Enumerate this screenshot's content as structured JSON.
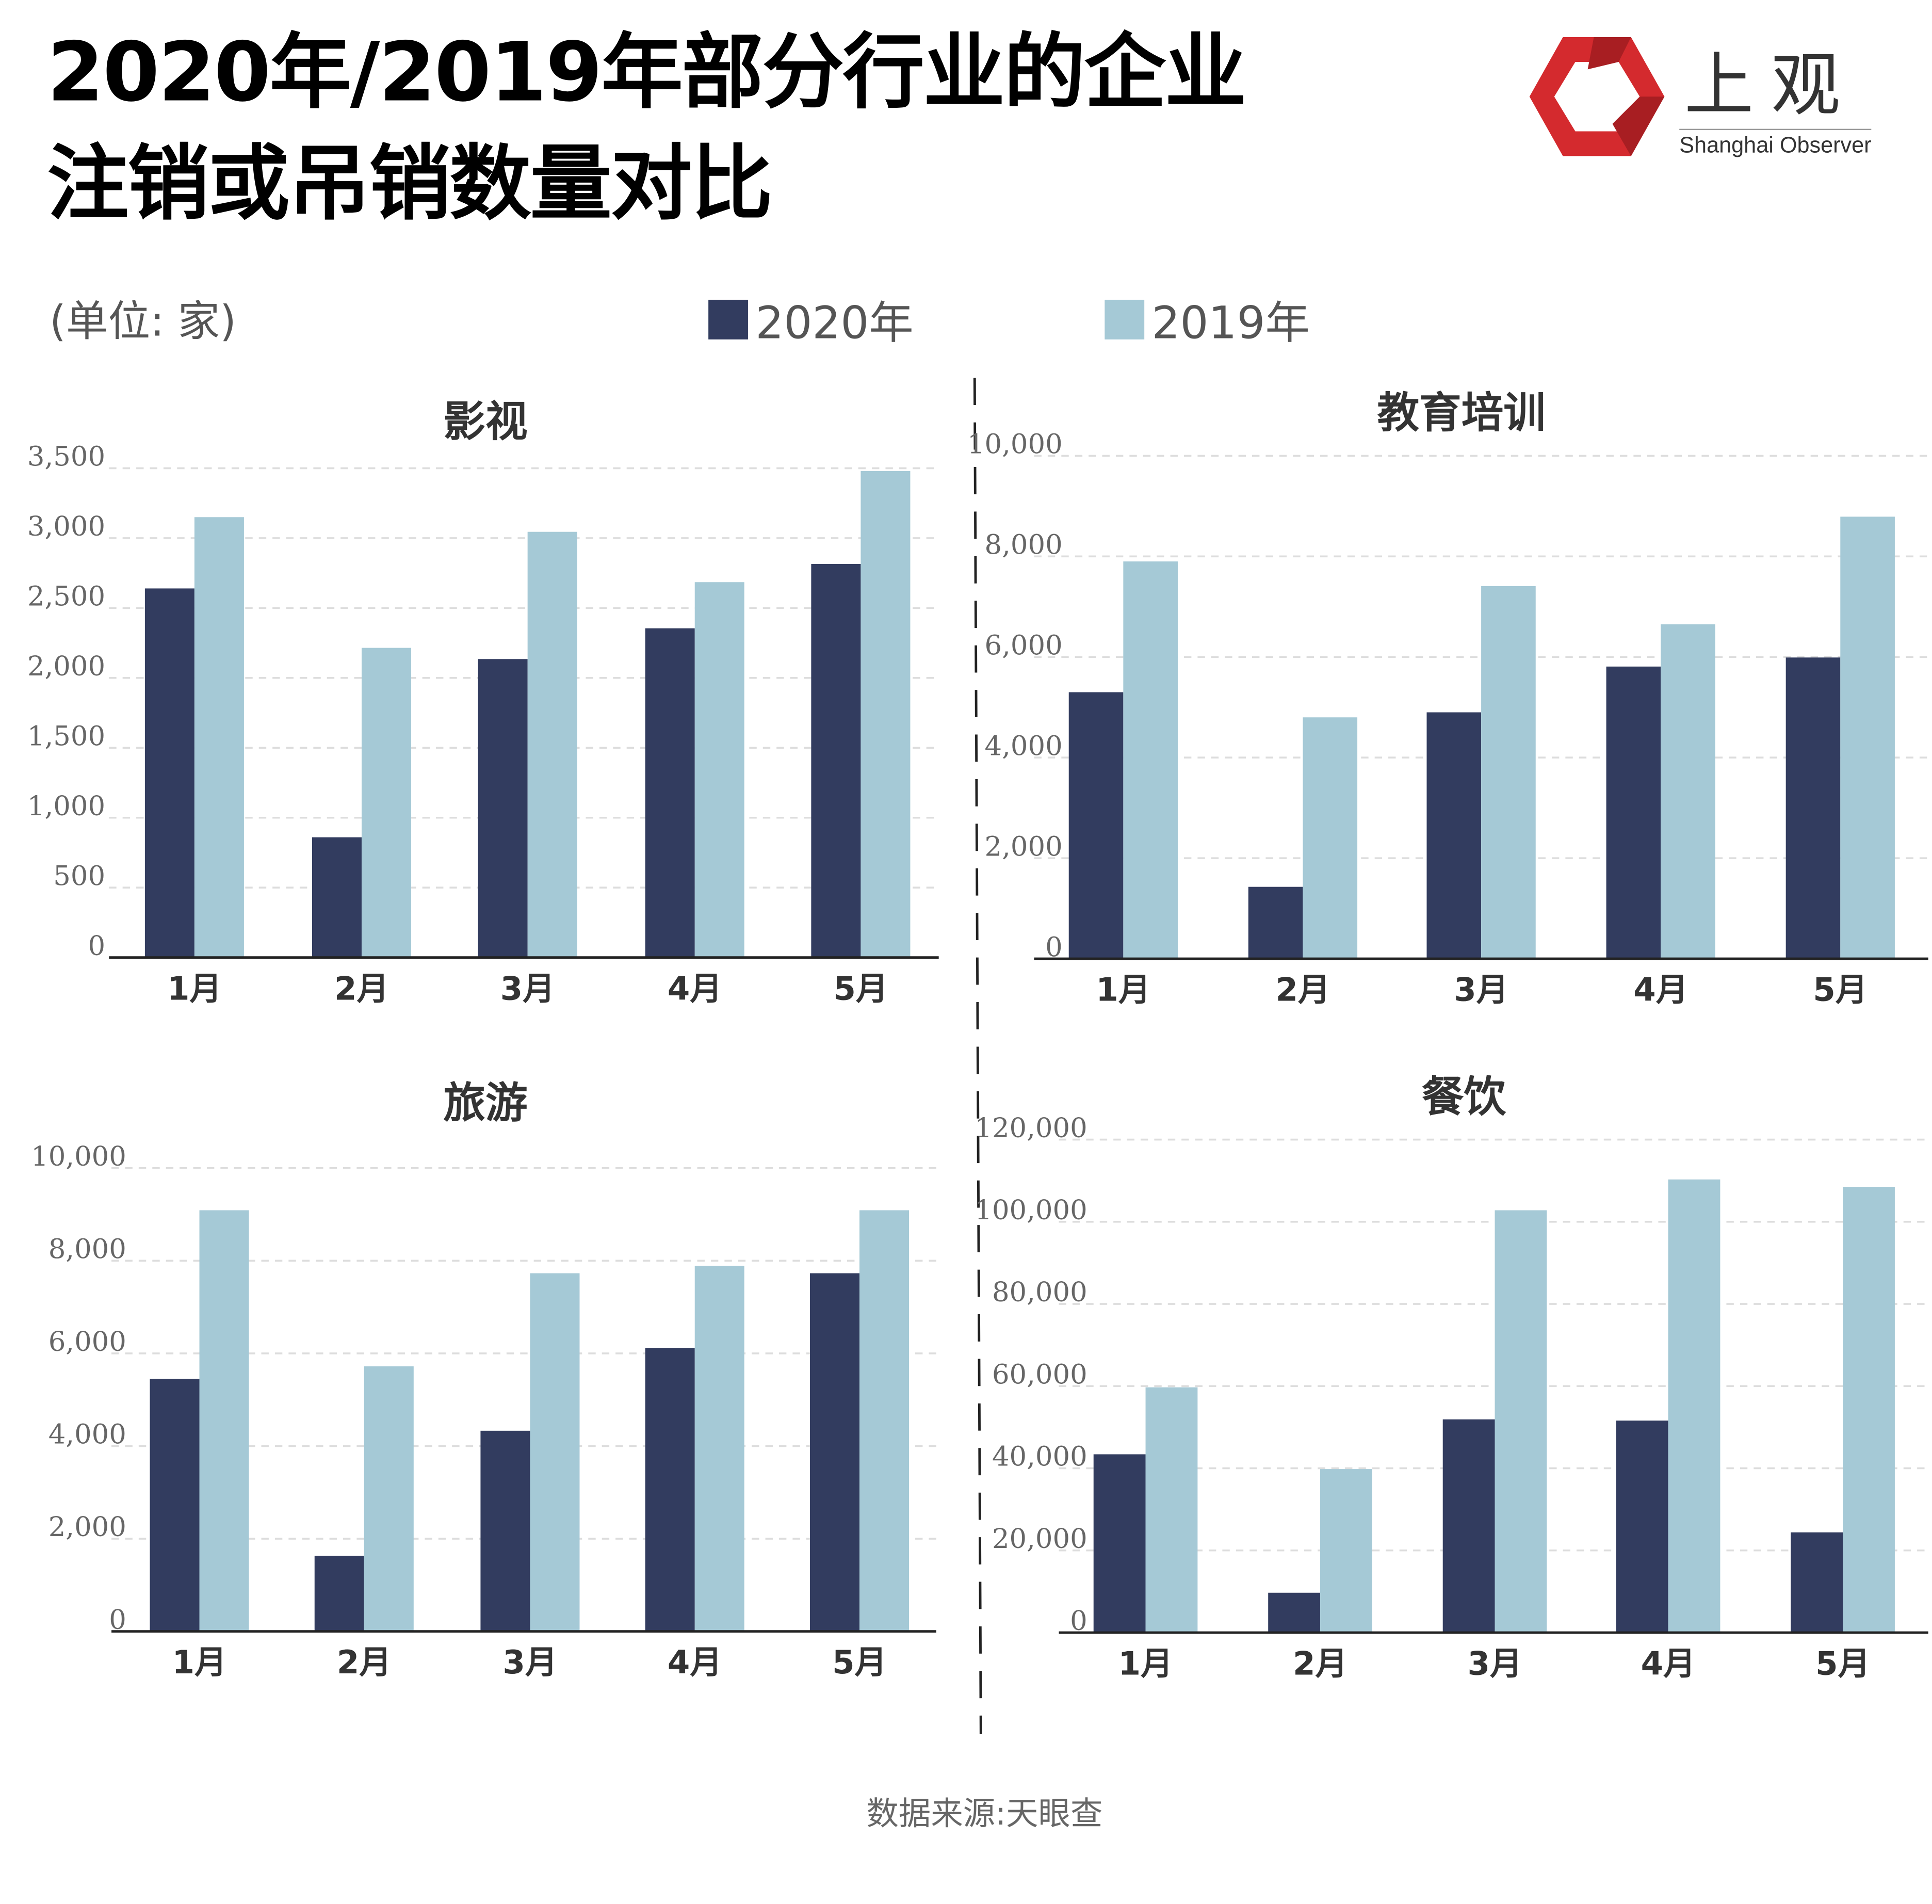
{
  "title_line1": "2020年/2019年部分行业的企业",
  "title_line2": "注销或吊销数量对比",
  "unit_label": "(单位: 家)",
  "logo": {
    "cn": "上观",
    "en": "Shanghai Observer"
  },
  "legend": [
    {
      "name": "2020年",
      "color": "#323c5f"
    },
    {
      "name": "2019年",
      "color": "#a5c9d6"
    }
  ],
  "source": "数据来源:天眼查",
  "chart_data": [
    {
      "type": "bar",
      "title": "影视",
      "categories": [
        "1月",
        "2月",
        "3月",
        "4月",
        "5月"
      ],
      "ylim": [
        0,
        3500
      ],
      "yticks": [
        0,
        500,
        1000,
        1500,
        2000,
        2500,
        3000,
        3500
      ],
      "yticklabels": [
        "0",
        "500",
        "1,000",
        "1,500",
        "2,000",
        "2,500",
        "3,000",
        "3,500"
      ],
      "series": [
        {
          "name": "2020年",
          "values": [
            2640,
            860,
            2135,
            2355,
            2815
          ]
        },
        {
          "name": "2019年",
          "values": [
            3150,
            2215,
            3045,
            2685,
            3480
          ]
        }
      ],
      "grid": true
    },
    {
      "type": "bar",
      "title": "教育培训",
      "categories": [
        "1月",
        "2月",
        "3月",
        "4月",
        "5月"
      ],
      "ylim": [
        0,
        10000
      ],
      "yticks": [
        0,
        2000,
        4000,
        6000,
        8000,
        10000
      ],
      "yticklabels": [
        "0",
        "2,000",
        "4,000",
        "6,000",
        "8,000",
        "10,000"
      ],
      "series": [
        {
          "name": "2020年",
          "values": [
            5300,
            1430,
            4900,
            5810,
            5990
          ]
        },
        {
          "name": "2019年",
          "values": [
            7900,
            4800,
            7410,
            6650,
            8790
          ]
        }
      ],
      "grid": true
    },
    {
      "type": "bar",
      "title": "旅游",
      "categories": [
        "1月",
        "2月",
        "3月",
        "4月",
        "5月"
      ],
      "ylim": [
        0,
        10000
      ],
      "yticks": [
        0,
        2000,
        4000,
        6000,
        8000,
        10000
      ],
      "yticklabels": [
        "0",
        "2,000",
        "4,000",
        "6,000",
        "8,000",
        "10,000"
      ],
      "series": [
        {
          "name": "2020年",
          "values": [
            5450,
            1630,
            4330,
            6120,
            7730
          ]
        },
        {
          "name": "2019年",
          "values": [
            9090,
            5720,
            7730,
            7890,
            9090
          ]
        }
      ],
      "grid": true
    },
    {
      "type": "bar",
      "title": "餐饮",
      "categories": [
        "1月",
        "2月",
        "3月",
        "4月",
        "5月"
      ],
      "ylim": [
        0,
        120000
      ],
      "yticks": [
        0,
        20000,
        40000,
        60000,
        80000,
        100000,
        120000
      ],
      "yticklabels": [
        "0",
        "20,000",
        "40,000",
        "60,000",
        "80,000",
        "100,000",
        "120,000"
      ],
      "series": [
        {
          "name": "2020年",
          "values": [
            43400,
            9700,
            51900,
            51600,
            24400
          ]
        },
        {
          "name": "2019年",
          "values": [
            59700,
            39800,
            102800,
            110300,
            108500
          ]
        }
      ],
      "grid": true
    }
  ]
}
